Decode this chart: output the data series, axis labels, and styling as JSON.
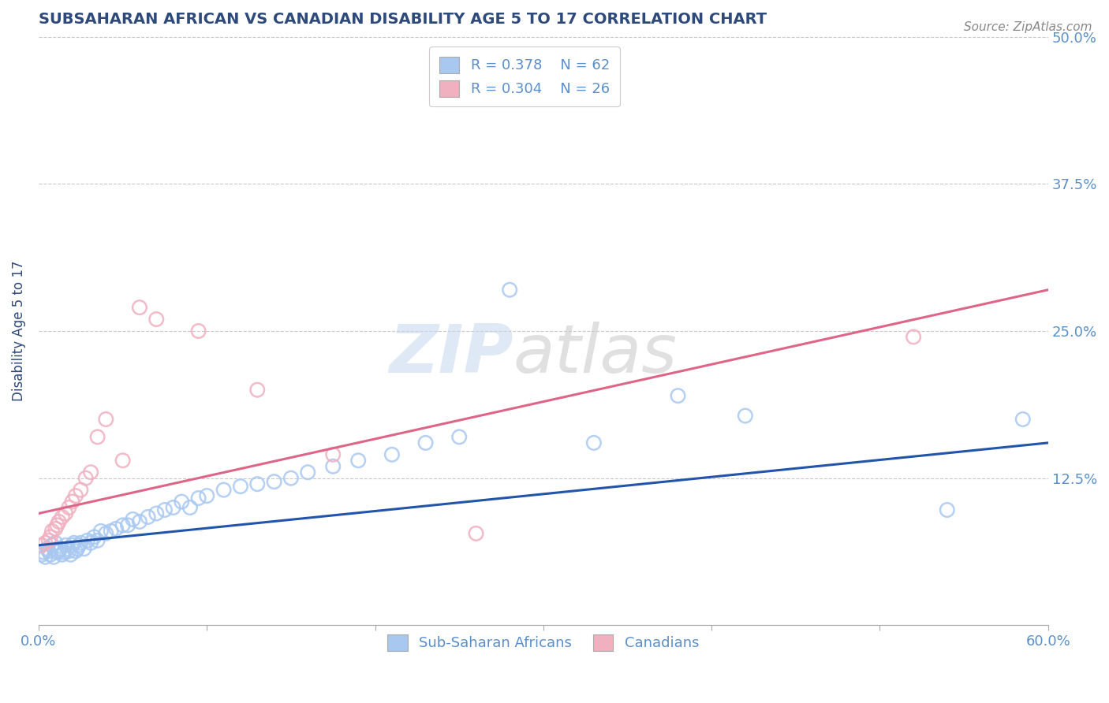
{
  "title": "SUBSAHARAN AFRICAN VS CANADIAN DISABILITY AGE 5 TO 17 CORRELATION CHART",
  "source": "Source: ZipAtlas.com",
  "ylabel": "Disability Age 5 to 17",
  "xlim": [
    0.0,
    0.6
  ],
  "ylim": [
    0.0,
    0.5
  ],
  "xticks": [
    0.0,
    0.1,
    0.2,
    0.3,
    0.4,
    0.5,
    0.6
  ],
  "yticks": [
    0.0,
    0.125,
    0.25,
    0.375,
    0.5
  ],
  "yticklabels": [
    "",
    "12.5%",
    "25.0%",
    "37.5%",
    "50.0%"
  ],
  "title_color": "#2d4a7a",
  "tick_color": "#5b8fc9",
  "background_color": "#ffffff",
  "grid_color": "#c8c8c8",
  "watermark_line1": "ZIP",
  "watermark_line2": "atlas",
  "legend_r1": "R = 0.378",
  "legend_n1": "N = 62",
  "legend_r2": "R = 0.304",
  "legend_n2": "N = 26",
  "series1_color": "#a8c8f0",
  "series2_color": "#f0b0c0",
  "line1_color": "#2255aa",
  "line2_color": "#dd6688",
  "series1_label": "Sub-Saharan Africans",
  "series2_label": "Canadians",
  "blue_x": [
    0.002,
    0.003,
    0.004,
    0.005,
    0.006,
    0.007,
    0.008,
    0.009,
    0.01,
    0.011,
    0.012,
    0.013,
    0.014,
    0.015,
    0.016,
    0.017,
    0.018,
    0.019,
    0.02,
    0.021,
    0.022,
    0.023,
    0.024,
    0.025,
    0.027,
    0.029,
    0.031,
    0.033,
    0.035,
    0.037,
    0.04,
    0.043,
    0.046,
    0.05,
    0.053,
    0.056,
    0.06,
    0.065,
    0.07,
    0.075,
    0.08,
    0.085,
    0.09,
    0.095,
    0.1,
    0.11,
    0.12,
    0.13,
    0.14,
    0.15,
    0.16,
    0.175,
    0.19,
    0.21,
    0.23,
    0.25,
    0.28,
    0.33,
    0.38,
    0.42,
    0.54,
    0.585
  ],
  "blue_y": [
    0.06,
    0.062,
    0.058,
    0.065,
    0.063,
    0.06,
    0.068,
    0.058,
    0.07,
    0.062,
    0.063,
    0.065,
    0.06,
    0.062,
    0.068,
    0.065,
    0.063,
    0.06,
    0.068,
    0.07,
    0.063,
    0.065,
    0.068,
    0.07,
    0.065,
    0.072,
    0.07,
    0.075,
    0.072,
    0.08,
    0.078,
    0.08,
    0.082,
    0.085,
    0.085,
    0.09,
    0.088,
    0.092,
    0.095,
    0.098,
    0.1,
    0.105,
    0.1,
    0.108,
    0.11,
    0.115,
    0.118,
    0.12,
    0.122,
    0.125,
    0.13,
    0.135,
    0.14,
    0.145,
    0.155,
    0.16,
    0.285,
    0.155,
    0.195,
    0.178,
    0.098,
    0.175
  ],
  "pink_x": [
    0.002,
    0.004,
    0.006,
    0.007,
    0.008,
    0.01,
    0.011,
    0.012,
    0.014,
    0.016,
    0.018,
    0.02,
    0.022,
    0.025,
    0.028,
    0.031,
    0.035,
    0.04,
    0.05,
    0.06,
    0.07,
    0.095,
    0.13,
    0.175,
    0.26,
    0.52
  ],
  "pink_y": [
    0.068,
    0.07,
    0.072,
    0.075,
    0.08,
    0.082,
    0.085,
    0.088,
    0.092,
    0.095,
    0.1,
    0.105,
    0.11,
    0.115,
    0.125,
    0.13,
    0.16,
    0.175,
    0.14,
    0.27,
    0.26,
    0.25,
    0.2,
    0.145,
    0.078,
    0.245
  ],
  "line1_x": [
    0.0,
    0.6
  ],
  "line1_y": [
    0.068,
    0.155
  ],
  "line2_x": [
    0.0,
    0.6
  ],
  "line2_y": [
    0.095,
    0.285
  ]
}
